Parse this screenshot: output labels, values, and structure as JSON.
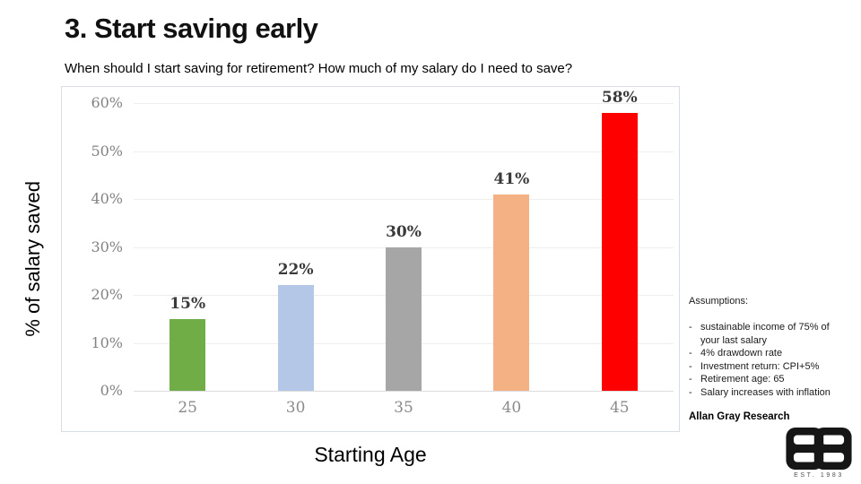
{
  "slide": {
    "title": "3. Start saving early",
    "subtitle": "When should I start saving for retirement? How much of my salary do I need to save?"
  },
  "chart_data": {
    "type": "bar",
    "title": "",
    "categories": [
      "25",
      "30",
      "35",
      "40",
      "45"
    ],
    "values": [
      15,
      22,
      30,
      41,
      58
    ],
    "value_labels": [
      "15%",
      "22%",
      "30%",
      "41%",
      "58%"
    ],
    "bar_colors": [
      "#70ad47",
      "#b4c7e7",
      "#a6a6a6",
      "#f4b183",
      "#ff0000"
    ],
    "xlabel": "Starting Age",
    "ylabel": "% of salary saved",
    "ylim": [
      0,
      60
    ],
    "ytick_step": 10,
    "ytick_labels": [
      "0%",
      "10%",
      "20%",
      "30%",
      "40%",
      "50%",
      "60%"
    ],
    "grid": true,
    "legend": false
  },
  "assumptions": {
    "heading": "Assumptions:",
    "bullet_char": "-",
    "items": [
      "sustainable income of 75% of your last salary",
      "4% drawdown rate",
      "Investment return: CPI+5%",
      "Retirement age: 65",
      "Salary increases with inflation"
    ],
    "source": "Allan Gray Research"
  },
  "logo": {
    "monogram": "EB",
    "est_label": "EST. 1983"
  }
}
